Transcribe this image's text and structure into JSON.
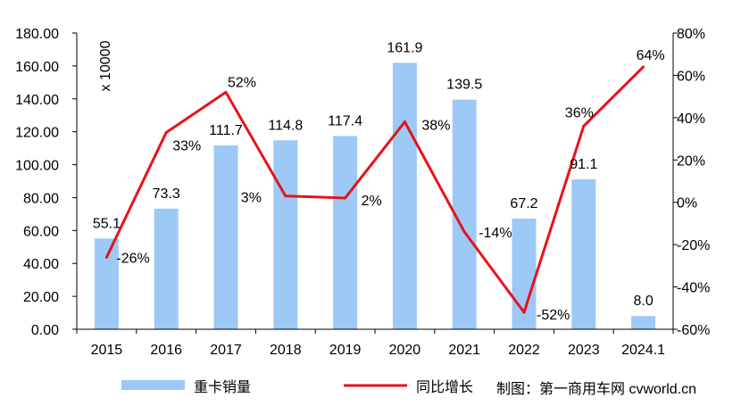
{
  "chart_data": {
    "type": "bar+line",
    "categories": [
      "2015",
      "2016",
      "2017",
      "2018",
      "2019",
      "2020",
      "2021",
      "2022",
      "2023",
      "2024.1"
    ],
    "series": [
      {
        "name": "重卡销量",
        "type": "bar",
        "axis": "left",
        "values": [
          55.1,
          73.3,
          111.7,
          114.8,
          117.4,
          161.9,
          139.5,
          67.2,
          91.1,
          8.0
        ],
        "labels": [
          "55.1",
          "73.3",
          "111.7",
          "114.8",
          "117.4",
          "161.9",
          "139.5",
          "67.2",
          "91.1",
          "8.0"
        ],
        "color": "#9cc9f5"
      },
      {
        "name": "同比增长",
        "type": "line",
        "axis": "right",
        "values": [
          -26,
          33,
          52,
          3,
          2,
          38,
          -14,
          -52,
          36,
          64
        ],
        "labels": [
          "-26%",
          "33%",
          "52%",
          "3%",
          "2%",
          "38%",
          "-14%",
          "-52%",
          "36%",
          "64%"
        ],
        "color": "#e8121b"
      }
    ],
    "left_axis": {
      "unit_label": "x 10000",
      "range": [
        0,
        180
      ],
      "ticks": [
        "0.00",
        "20.00",
        "40.00",
        "60.00",
        "80.00",
        "100.00",
        "120.00",
        "140.00",
        "160.00",
        "180.00"
      ]
    },
    "right_axis": {
      "range": [
        -60,
        80
      ],
      "ticks": [
        "-60%",
        "-40%",
        "-20%",
        "0%",
        "20%",
        "40%",
        "60%",
        "80%"
      ]
    },
    "grid": false,
    "legend_placement": "bottom"
  },
  "credit": "制图：第一商用车网  cvworld.cn"
}
